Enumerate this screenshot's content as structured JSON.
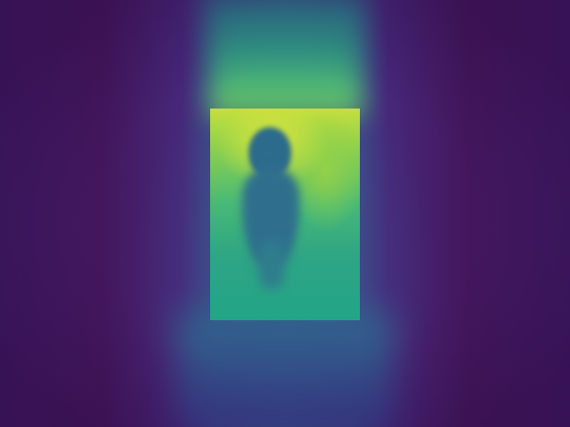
{
  "image": {
    "kind": "depth-style heatmap photograph",
    "palette": [
      "#440154",
      "#3b528b",
      "#21908d",
      "#5dc863",
      "#fde725"
    ],
    "regions": [
      "dark-surround",
      "top-light-beam",
      "bright-doorway",
      "human-silhouette"
    ]
  }
}
